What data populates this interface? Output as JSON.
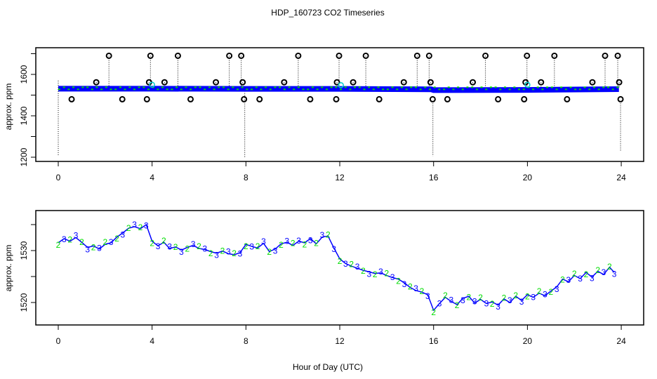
{
  "chart_data": [
    {
      "type": "scatter",
      "title": "HDP_160723  CO2 Timeseries",
      "xlabel": "",
      "ylabel": "approx. ppm",
      "xlim": [
        0,
        24
      ],
      "ylim": [
        1200,
        1700
      ],
      "x_ticks": [
        0,
        4,
        8,
        12,
        16,
        20,
        24
      ],
      "y_ticks": [
        1200,
        1300,
        1400,
        1500,
        1600,
        1700
      ],
      "y_tick_labels": [
        "1200",
        "1400",
        "1600"
      ],
      "baseline": {
        "x": [
          0,
          4,
          8,
          12,
          15.9,
          16,
          20,
          23.9
        ],
        "y": [
          1531,
          1531,
          1530,
          1530,
          1528,
          1524,
          1525,
          1529
        ]
      },
      "outliers_high": {
        "value": 1690,
        "x": [
          2.16,
          3.93,
          5.1,
          7.29,
          7.8,
          10.23,
          11.97,
          13.11,
          15.3,
          15.81,
          18.21,
          19.98,
          21.15,
          23.31,
          23.85
        ]
      },
      "outliers_mid": {
        "value": 1562,
        "x": [
          1.62,
          3.87,
          4.53,
          6.72,
          7.86,
          9.63,
          11.88,
          12.57,
          14.73,
          15.87,
          17.67,
          19.92,
          20.58,
          22.77,
          23.91
        ]
      },
      "outliers_low": {
        "value": 1480,
        "x": [
          0.57,
          2.73,
          3.78,
          5.64,
          7.92,
          8.58,
          10.74,
          11.85,
          13.68,
          15.96,
          16.59,
          18.75,
          19.86,
          21.69,
          23.97
        ]
      },
      "cyan_points": [
        {
          "x": 4.0,
          "y": 1550
        },
        {
          "x": 20.0,
          "y": 1550
        },
        {
          "x": 12.05,
          "y": 1548
        }
      ],
      "drops": [
        {
          "x": 0,
          "from": 1570,
          "to": 1210
        },
        {
          "x": 7.95,
          "from": 1530,
          "to": 1200
        },
        {
          "x": 15.97,
          "from": 1470,
          "to": 1205
        },
        {
          "x": 23.97,
          "from": 1470,
          "to": 1230
        }
      ]
    },
    {
      "type": "line",
      "xlabel": "Hour of Day (UTC)",
      "ylabel": "approx. ppm",
      "xlim": [
        0,
        24
      ],
      "ylim": [
        1515.7,
        1537.7
      ],
      "x_ticks": [
        0,
        4,
        8,
        12,
        16,
        20,
        24
      ],
      "y_ticks": [
        1520,
        1525,
        1530,
        1535
      ],
      "y_tick_labels": [
        "1520",
        "1530"
      ],
      "marker_labels": [
        "2",
        "3"
      ],
      "series_colors": [
        "#00dd00",
        "#0000ff"
      ],
      "x": [
        0,
        0.25,
        0.5,
        0.75,
        1,
        1.25,
        1.5,
        1.75,
        2,
        2.25,
        2.5,
        2.75,
        3,
        3.25,
        3.5,
        3.75,
        4,
        4.25,
        4.5,
        4.75,
        5,
        5.25,
        5.5,
        5.75,
        6,
        6.25,
        6.5,
        6.75,
        7,
        7.25,
        7.5,
        7.75,
        8,
        8.25,
        8.5,
        8.75,
        9,
        9.25,
        9.5,
        9.75,
        10,
        10.25,
        10.5,
        10.75,
        11,
        11.25,
        11.5,
        11.75,
        12,
        12.25,
        12.5,
        12.75,
        13,
        13.25,
        13.5,
        13.75,
        14,
        14.25,
        14.5,
        14.75,
        15,
        15.25,
        15.5,
        15.75,
        16,
        16.25,
        16.5,
        16.75,
        17,
        17.25,
        17.5,
        17.75,
        18,
        18.25,
        18.5,
        18.75,
        19,
        19.25,
        19.5,
        19.75,
        20,
        20.25,
        20.5,
        20.75,
        21,
        21.25,
        21.5,
        21.75,
        22,
        22.25,
        22.5,
        22.75,
        23,
        23.25,
        23.5,
        23.7
      ],
      "y": [
        1531.5,
        1532.3,
        1531.8,
        1532.5,
        1531.6,
        1530.6,
        1530.9,
        1530.3,
        1531.2,
        1531.5,
        1532.6,
        1533.4,
        1534.3,
        1534.6,
        1534.2,
        1535.0,
        1531.8,
        1530.9,
        1531.6,
        1530.4,
        1530.7,
        1530.1,
        1530.6,
        1531.0,
        1530.4,
        1530.2,
        1529.8,
        1529.5,
        1529.9,
        1529.4,
        1529.2,
        1529.6,
        1531.2,
        1530.8,
        1530.5,
        1531.4,
        1529.8,
        1530.3,
        1531.3,
        1531.6,
        1531.0,
        1531.8,
        1531.5,
        1532.3,
        1531.3,
        1532.6,
        1532.8,
        1530.5,
        1528.4,
        1527.5,
        1527.0,
        1526.6,
        1526.2,
        1525.9,
        1525.6,
        1525.7,
        1525.2,
        1524.8,
        1524.5,
        1523.8,
        1522.9,
        1522.3,
        1522.0,
        1521.5,
        1518.5,
        1519.8,
        1521.0,
        1520.2,
        1519.6,
        1520.8,
        1521.2,
        1519.9,
        1520.6,
        1519.8,
        1520.1,
        1519.5,
        1520.7,
        1520.0,
        1521.2,
        1520.4,
        1521.5,
        1521.0,
        1521.8,
        1521.3,
        1522.2,
        1523.0,
        1524.5,
        1524.0,
        1525.2,
        1524.6,
        1525.8,
        1524.9,
        1526.0,
        1525.4,
        1526.8,
        1525.8
      ]
    }
  ]
}
